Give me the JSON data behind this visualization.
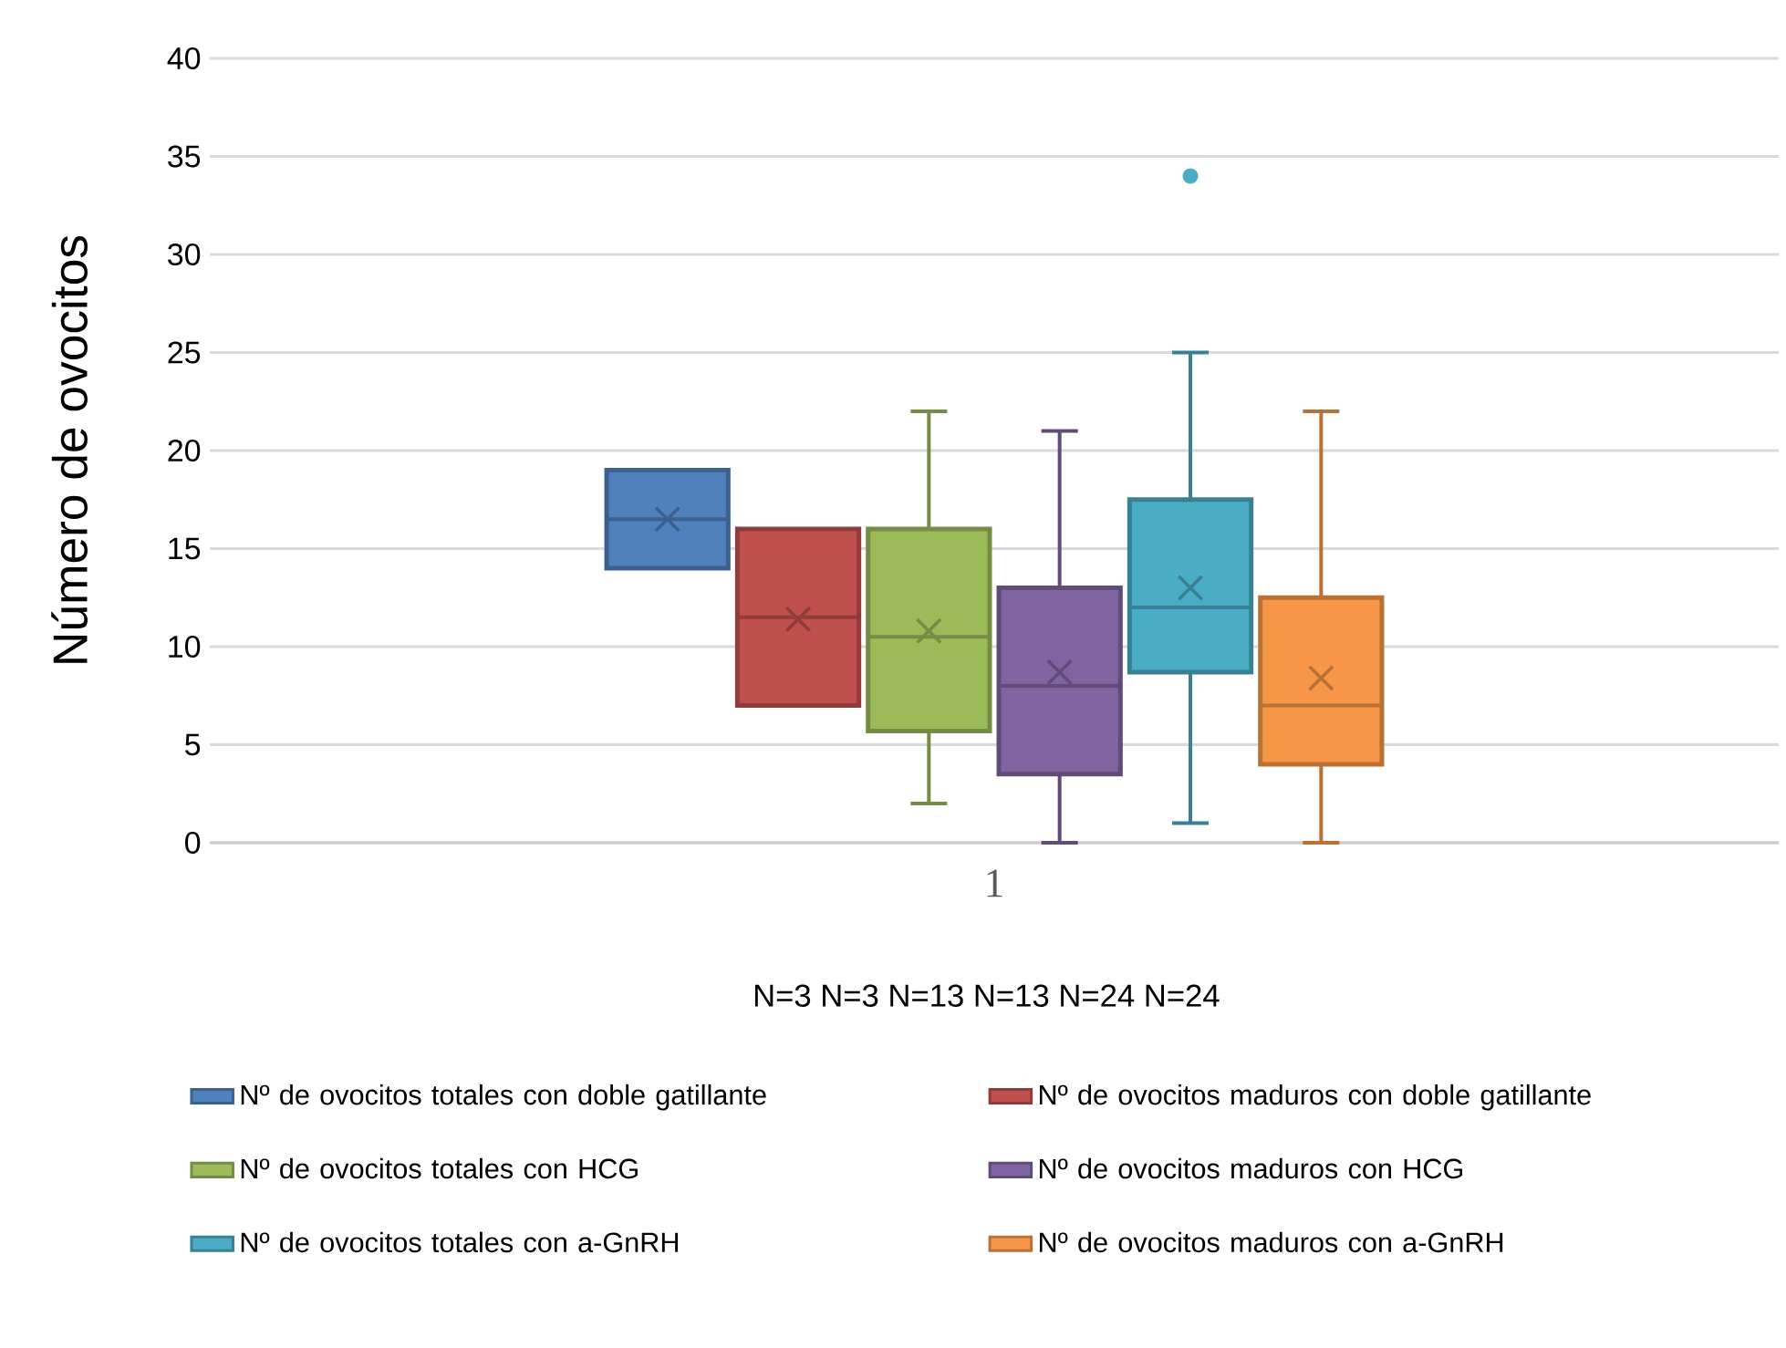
{
  "chart_data": {
    "type": "box",
    "ylabel": "Número de ovocitos",
    "xlabel": "N=3  N=3  N=13 N=13  N=24  N=24",
    "categories": [
      "1"
    ],
    "ylim": [
      0,
      40
    ],
    "yticks": [
      0,
      5,
      10,
      15,
      20,
      25,
      30,
      35,
      40
    ],
    "grid": "y",
    "legend": "bottom",
    "series": [
      {
        "name": "Nº de ovocitos totales con doble gatillante",
        "color": "#4f81bd",
        "boxes": [
          {
            "low": 14,
            "q1": 14,
            "median": 16.5,
            "q3": 19,
            "high": 19,
            "mean": 16.5
          }
        ]
      },
      {
        "name": "Nº de ovocitos maduros con doble gatillante",
        "color": "#c0504d",
        "boxes": [
          {
            "low": 7,
            "q1": 7,
            "median": 11.5,
            "q3": 16,
            "high": 16,
            "mean": 11.4
          }
        ]
      },
      {
        "name": "Nº de ovocitos totales con HCG",
        "color": "#9bbb59",
        "boxes": [
          {
            "low": 2,
            "q1": 5.7,
            "median": 10.5,
            "q3": 16,
            "high": 22,
            "mean": 10.8
          }
        ]
      },
      {
        "name": "Nº de ovocitos maduros con HCG",
        "color": "#8064a2",
        "boxes": [
          {
            "low": 0,
            "q1": 3.5,
            "median": 8,
            "q3": 13,
            "high": 21,
            "mean": 8.7
          }
        ]
      },
      {
        "name": "Nº de ovocitos totales con a-GnRH",
        "color": "#4bacc6",
        "boxes": [
          {
            "low": 1,
            "q1": 8.7,
            "median": 12,
            "q3": 17.5,
            "high": 25,
            "mean": 13,
            "outliers": [
              34
            ]
          }
        ]
      },
      {
        "name": "Nº de ovocitos maduros con a-GnRH",
        "color": "#f79646",
        "boxes": [
          {
            "low": 0,
            "q1": 4,
            "median": 7,
            "q3": 12.5,
            "high": 22,
            "mean": 8.4
          }
        ]
      }
    ]
  }
}
